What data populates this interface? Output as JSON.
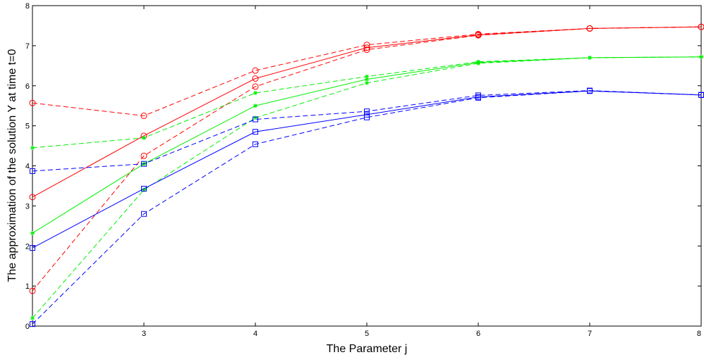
{
  "chart_data": {
    "type": "line",
    "xlabel": "The Parameter j",
    "ylabel": "The approximation of the solution Y at time t=0",
    "xlim": [
      2,
      8
    ],
    "ylim": [
      0,
      8
    ],
    "x_ticks": [
      3,
      4,
      5,
      6,
      7,
      8
    ],
    "y_ticks": [
      0,
      1,
      2,
      3,
      4,
      5,
      6,
      7,
      8
    ],
    "grid": false,
    "x": [
      2,
      3,
      4,
      5,
      6,
      7,
      8
    ],
    "series": [
      {
        "color": "#ff0000",
        "style": "solid",
        "marker": "circle",
        "values": [
          3.22,
          4.75,
          6.18,
          6.95,
          7.27,
          7.43,
          7.47
        ]
      },
      {
        "color": "#ff0000",
        "style": "dashed",
        "marker": "circle",
        "values": [
          5.57,
          5.25,
          6.38,
          7.02,
          7.29,
          7.43,
          7.47
        ]
      },
      {
        "color": "#ff0000",
        "style": "dashed",
        "marker": "circle",
        "values": [
          0.88,
          4.25,
          5.98,
          6.9,
          7.26,
          7.43,
          7.47
        ]
      },
      {
        "color": "#00ee00",
        "style": "solid",
        "marker": "star",
        "values": [
          2.32,
          4.05,
          5.5,
          6.16,
          6.58,
          6.7,
          6.72
        ]
      },
      {
        "color": "#00ee00",
        "style": "dashed",
        "marker": "star",
        "values": [
          4.45,
          4.7,
          5.82,
          6.23,
          6.6,
          6.7,
          6.72
        ]
      },
      {
        "color": "#00ee00",
        "style": "dashed",
        "marker": "star",
        "values": [
          0.2,
          3.4,
          5.2,
          6.07,
          6.56,
          6.7,
          6.72
        ]
      },
      {
        "color": "#0000ff",
        "style": "solid",
        "marker": "square",
        "values": [
          1.95,
          3.43,
          4.85,
          5.28,
          5.72,
          5.87,
          5.77
        ]
      },
      {
        "color": "#0000ff",
        "style": "dashed",
        "marker": "square",
        "values": [
          3.87,
          4.05,
          5.16,
          5.36,
          5.76,
          5.88,
          5.77
        ]
      },
      {
        "color": "#0000ff",
        "style": "dashed",
        "marker": "square",
        "values": [
          0.05,
          2.8,
          4.54,
          5.21,
          5.7,
          5.87,
          5.77
        ]
      }
    ]
  }
}
